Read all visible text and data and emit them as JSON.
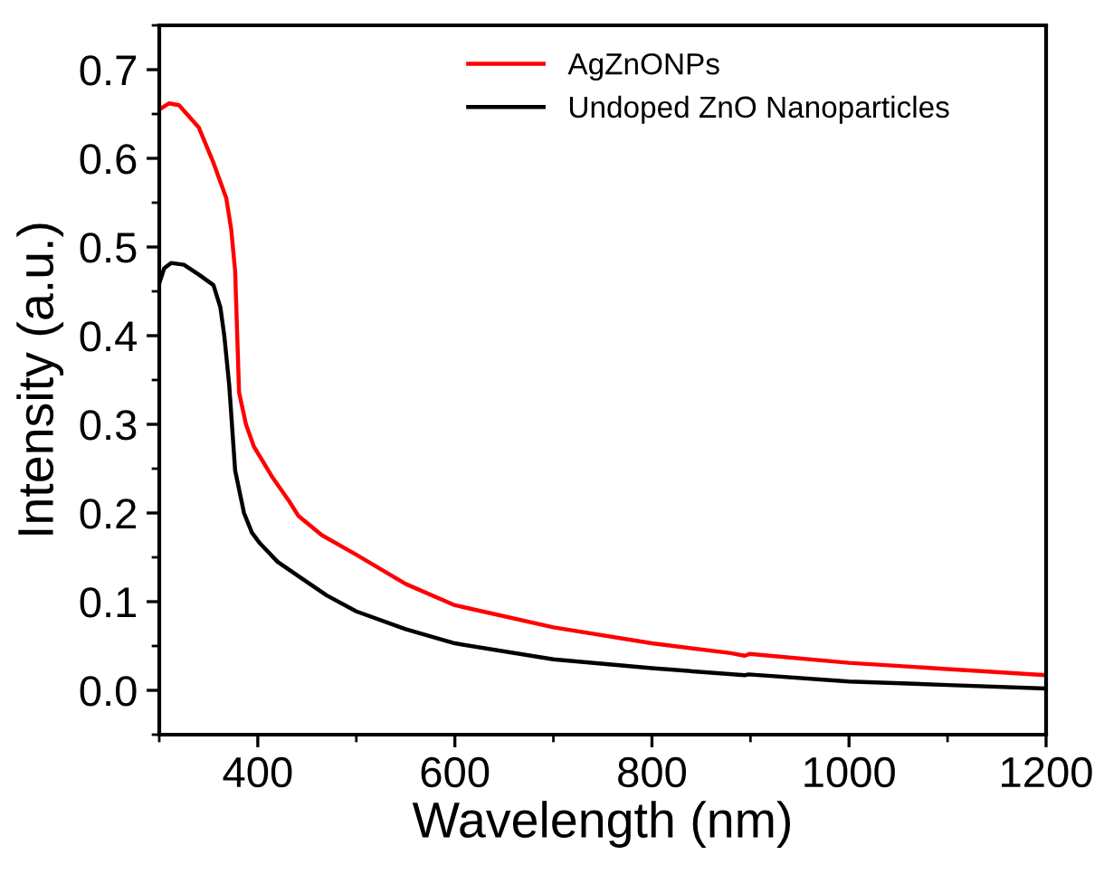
{
  "chart_data": {
    "type": "line",
    "xlabel": "Wavelength (nm)",
    "ylabel": "Intensity (a.u.)",
    "xlim": [
      300,
      1200
    ],
    "xticks": [
      400,
      600,
      800,
      1000,
      1200
    ],
    "ylim": [
      -0.05,
      0.75
    ],
    "yticks": [
      {
        "value": 0.0,
        "label": "0.0"
      },
      0.1,
      0.2,
      0.3,
      0.4,
      0.5,
      0.6,
      0.7
    ],
    "grid": false,
    "legend": "top",
    "marker": "none",
    "line_style": "solid",
    "series": [
      {
        "name": "AgZnONPs",
        "color": "#ff0000",
        "x": [
          300,
          310,
          320,
          340,
          355,
          368,
          373,
          377,
          381,
          388,
          396,
          415,
          432,
          441,
          465,
          500,
          550,
          600,
          700,
          800,
          880,
          894,
          899,
          1000,
          1100,
          1200
        ],
        "values": [
          0.655,
          0.662,
          0.66,
          0.635,
          0.595,
          0.555,
          0.52,
          0.473,
          0.336,
          0.3,
          0.275,
          0.24,
          0.213,
          0.197,
          0.175,
          0.153,
          0.12,
          0.096,
          0.071,
          0.053,
          0.042,
          0.039,
          0.041,
          0.031,
          0.024,
          0.017
        ]
      },
      {
        "name": "Undoped ZnO Nanoparticles",
        "color": "#000000",
        "x": [
          300,
          305,
          312,
          325,
          340,
          355,
          362,
          366,
          371,
          377,
          386,
          394,
          402,
          420,
          441,
          470,
          500,
          550,
          600,
          700,
          800,
          894,
          898,
          1000,
          1100,
          1200
        ],
        "values": [
          0.459,
          0.476,
          0.482,
          0.48,
          0.469,
          0.457,
          0.432,
          0.4,
          0.344,
          0.248,
          0.2,
          0.178,
          0.166,
          0.145,
          0.129,
          0.107,
          0.089,
          0.069,
          0.053,
          0.035,
          0.025,
          0.017,
          0.018,
          0.01,
          0.006,
          0.002
        ]
      }
    ]
  }
}
